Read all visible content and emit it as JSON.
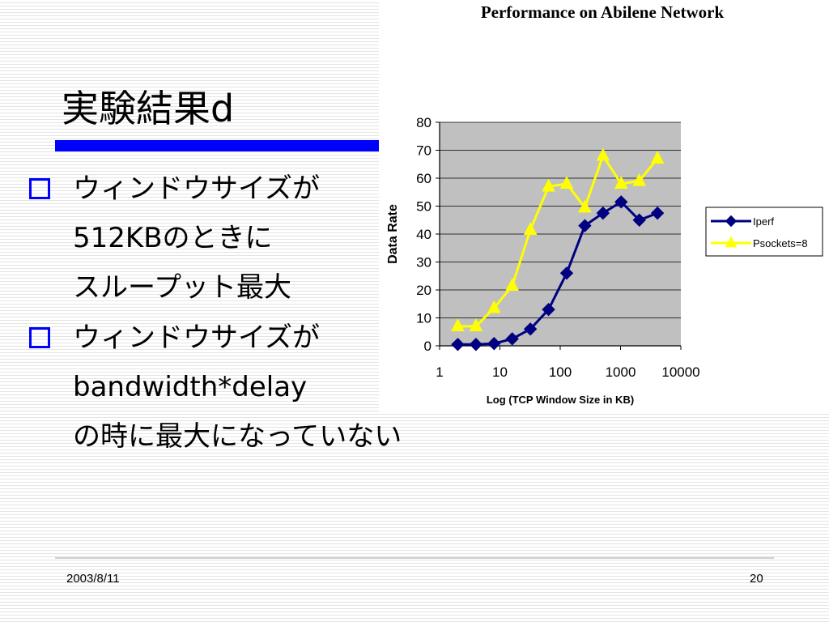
{
  "slide": {
    "title": "実験結果d",
    "bullets": [
      {
        "lines": [
          "ウィンドウサイズが",
          "512KBのときに",
          "スループット最大"
        ]
      },
      {
        "lines": [
          "ウィンドウサイズが",
          "bandwidth*delay",
          "の時に最大になっていない"
        ]
      }
    ]
  },
  "footer": {
    "date": "2003/8/11",
    "page": "20"
  },
  "colors": {
    "accent": "#0000ff",
    "plot_bg": "#c0c0c0",
    "iperf": "#000080",
    "psockets": "#ffff00"
  },
  "chart_data": {
    "type": "line",
    "title": "Performance on Abilene Network",
    "xlabel": "Log (TCP Window Size in KB)",
    "ylabel": "Data Rate",
    "xscale": "log",
    "xlim": [
      1,
      10000
    ],
    "ylim": [
      0,
      80
    ],
    "x_ticks": [
      "1",
      "10",
      "100",
      "1000",
      "10000"
    ],
    "y_ticks": [
      "0",
      "10",
      "20",
      "30",
      "40",
      "50",
      "60",
      "70",
      "80"
    ],
    "grid": true,
    "legend": "right",
    "series": [
      {
        "name": "Iperf",
        "marker": "diamond",
        "x": [
          2,
          4,
          8,
          16,
          32,
          64,
          128,
          256,
          512,
          1024,
          2048,
          4096
        ],
        "y": [
          0.5,
          0.5,
          0.8,
          2.5,
          6,
          13,
          26,
          43,
          47.5,
          51.5,
          45,
          47.5
        ]
      },
      {
        "name": "Psockets=8",
        "marker": "triangle",
        "x": [
          2,
          4,
          8,
          16,
          32,
          64,
          128,
          256,
          512,
          1024,
          2048,
          4096
        ],
        "y": [
          7,
          7,
          13.5,
          21.5,
          41.5,
          57,
          58,
          49.5,
          68,
          58,
          59,
          67
        ]
      }
    ]
  }
}
